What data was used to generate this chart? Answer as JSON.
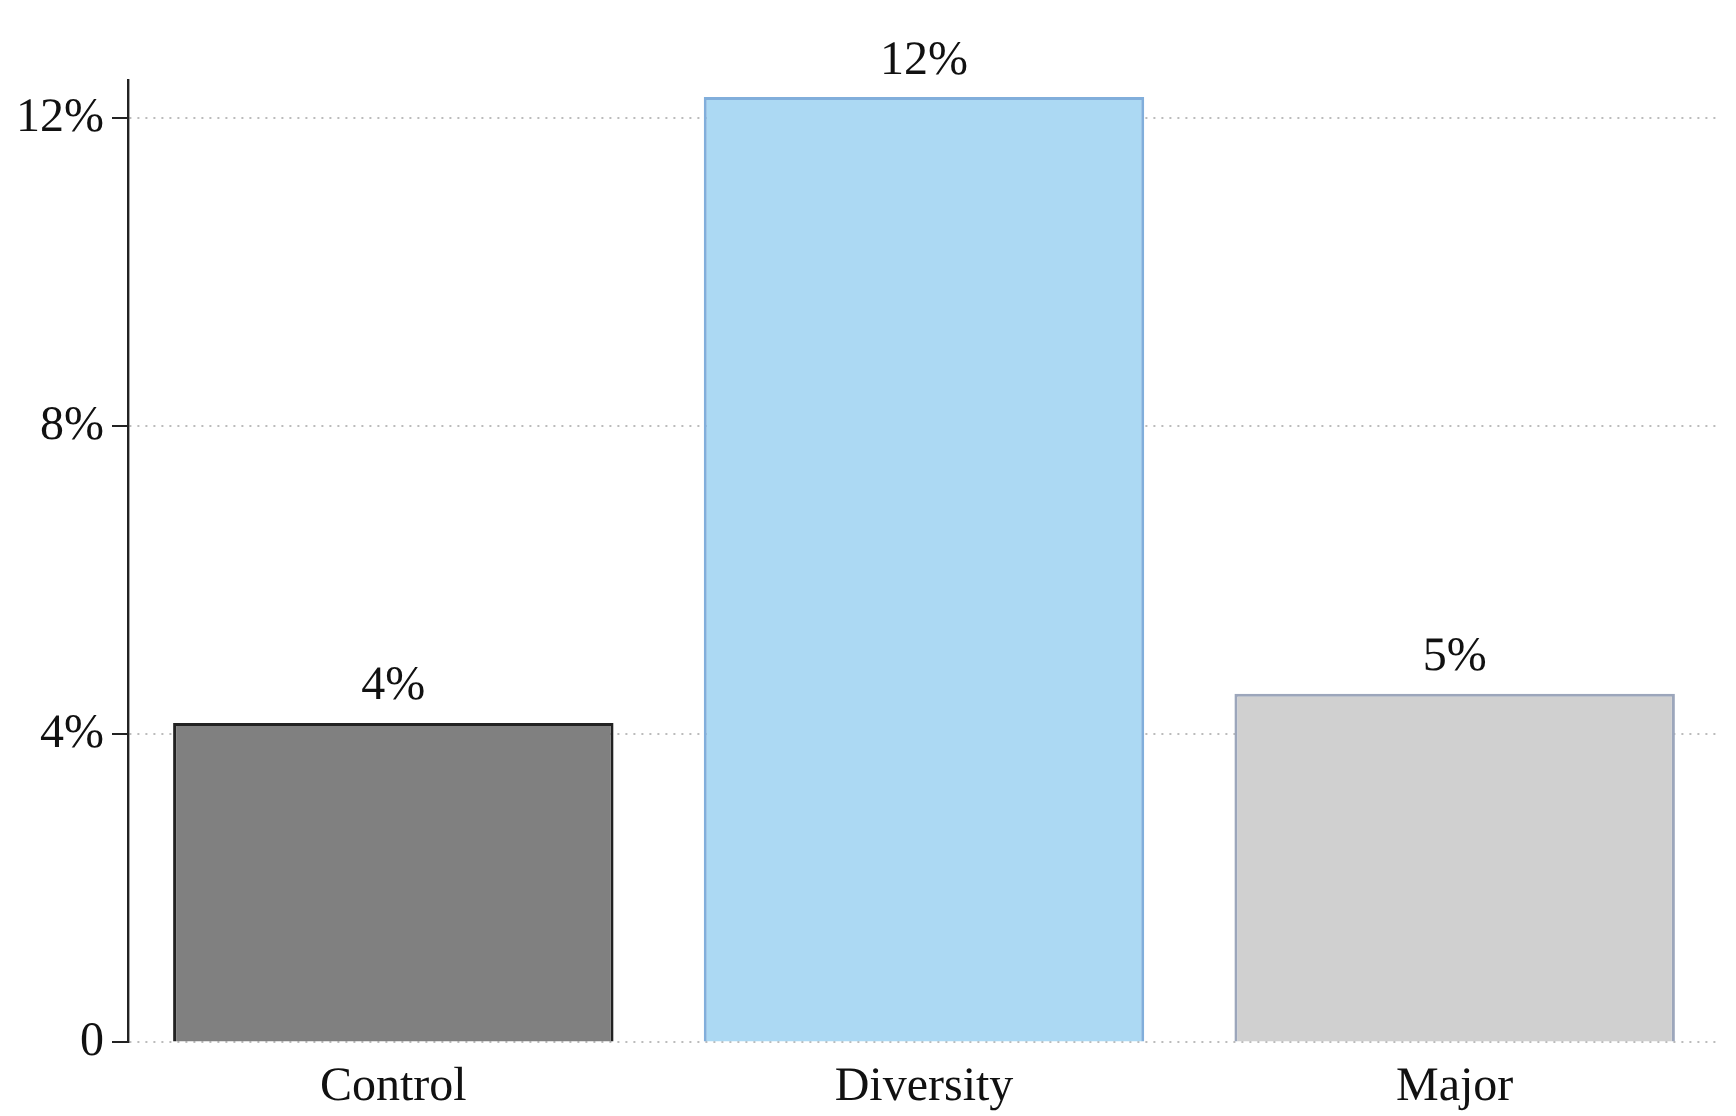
{
  "chart_data": {
    "type": "bar",
    "categories": [
      "Control",
      "Diversity",
      "Major"
    ],
    "values": [
      4.15,
      12.28,
      4.53
    ],
    "colors": [
      "#808080",
      "#acd9f3",
      "#d0d0d0"
    ],
    "value_labels": [
      "4%",
      "12%",
      "5%"
    ],
    "ylim": [
      0,
      12.5
    ],
    "yticks": [
      0,
      {
        "value": 4,
        "label": "4%"
      },
      {
        "value": 8,
        "label": "8%"
      },
      {
        "value": 12,
        "label": "12%"
      }
    ],
    "grid": "y",
    "legend": false
  }
}
